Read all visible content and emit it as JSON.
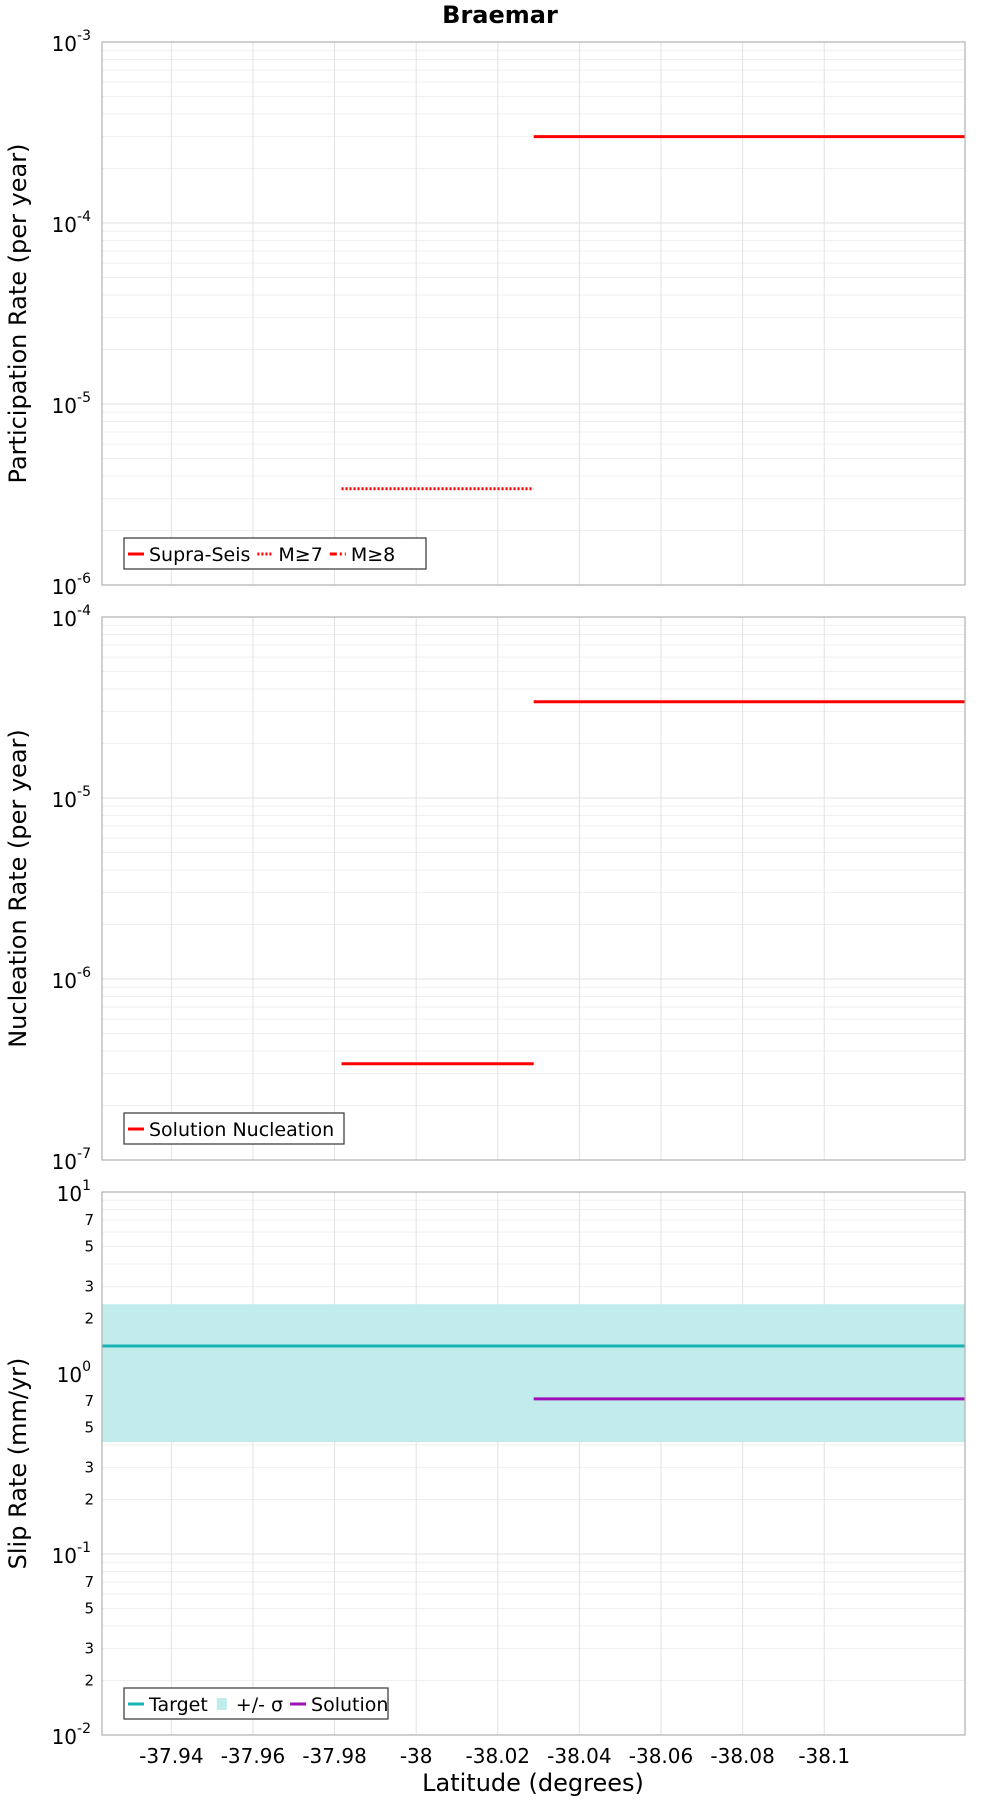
{
  "chart_data": {
    "title": "Braemar",
    "x_axis": {
      "label": "Latitude (degrees)",
      "lim": [
        -37.923,
        -38.1345
      ],
      "ticks": [
        -37.94,
        -37.96,
        -37.98,
        -38,
        -38.02,
        -38.04,
        -38.06,
        -38.08,
        -38.1
      ],
      "tick_labels": [
        "-37.94",
        "-37.96",
        "-37.98",
        "-38",
        "-38.02",
        "-38.04",
        "-38.06",
        "-38.08",
        "-38.1"
      ]
    },
    "panels": [
      {
        "type": "line",
        "ylabel": "Participation Rate (per year)",
        "yscale": "log",
        "ylim": [
          1e-06,
          0.001
        ],
        "decade_exponents": [
          -6,
          -5,
          -4,
          -3
        ],
        "minor_labels": [],
        "grid": true,
        "legend_position": "bottom-left",
        "series": [
          {
            "name": "Supra-Seis",
            "color": "#ff0000",
            "dash": "solid",
            "segments": [
              {
                "x": [
                  -38.0288,
                  -38.1345
                ],
                "y": 0.0003
              }
            ]
          },
          {
            "name": "M≥7",
            "color": "#ff0000",
            "dash": "dotted",
            "segments": [
              {
                "x": [
                  -37.9817,
                  -38.0288
                ],
                "y": 3.4e-06
              }
            ]
          },
          {
            "name": "M≥8",
            "color": "#ff0000",
            "dash": "dashdot",
            "segments": []
          }
        ]
      },
      {
        "type": "line",
        "ylabel": "Nucleation Rate (per year)",
        "yscale": "log",
        "ylim": [
          1e-07,
          0.0001
        ],
        "decade_exponents": [
          -7,
          -6,
          -5,
          -4
        ],
        "minor_labels": [],
        "grid": true,
        "legend_position": "bottom-left",
        "series": [
          {
            "name": "Solution Nucleation",
            "color": "#ff0000",
            "dash": "solid",
            "segments": [
              {
                "x": [
                  -37.9817,
                  -38.0288
                ],
                "y": 3.4e-07
              },
              {
                "x": [
                  -38.0288,
                  -38.1345
                ],
                "y": 3.4e-05
              }
            ]
          }
        ]
      },
      {
        "type": "line",
        "ylabel": "Slip Rate (mm/yr)",
        "yscale": "log",
        "ylim": [
          0.01,
          10
        ],
        "decade_exponents": [
          -2,
          -1,
          0,
          1
        ],
        "minor_labels": [
          2,
          3,
          5,
          7
        ],
        "grid": true,
        "legend_position": "bottom-left",
        "band": {
          "name": "+/- σ",
          "color": "#c2ecec",
          "x": [
            -37.923,
            -38.1345
          ],
          "y": [
            0.415,
            2.4
          ]
        },
        "series": [
          {
            "name": "Target",
            "color": "#19b3b3",
            "dash": "solid",
            "segments": [
              {
                "x": [
                  -37.923,
                  -38.1345
                ],
                "y": 1.41
              }
            ]
          },
          {
            "name": "Solution",
            "color": "#a010b8",
            "dash": "solid",
            "segments": [
              {
                "x": [
                  -38.0288,
                  -38.1345
                ],
                "y": 0.72
              }
            ]
          }
        ]
      }
    ]
  }
}
